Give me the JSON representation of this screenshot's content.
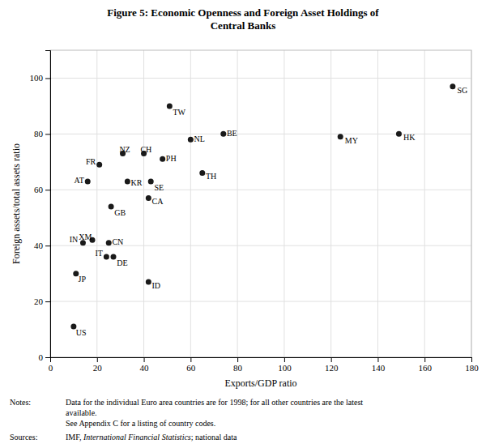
{
  "chart_data": {
    "type": "scatter",
    "title": "Figure 5: Economic Openness and Foreign Asset Holdings of\nCentral Banks",
    "x_label": "Exports/GDP ratio",
    "y_label": "Foreign assets/total assets ratio",
    "labels": [
      "US",
      "JP",
      "IN",
      "XM",
      "FR",
      "AT",
      "GB",
      "IT",
      "DE",
      "CN",
      "NZ",
      "KR",
      "CH",
      "SE",
      "CA",
      "ID",
      "PH",
      "TW",
      "NL",
      "TH",
      "BE",
      "MY",
      "HK",
      "SG"
    ],
    "x": [
      10,
      11,
      14,
      18,
      21,
      16,
      26,
      24,
      27,
      25,
      31,
      33,
      40,
      43,
      42,
      42,
      48,
      51,
      60,
      65,
      74,
      124,
      149,
      172
    ],
    "values": [
      11,
      30,
      41,
      42,
      69,
      63,
      54,
      36,
      36,
      41,
      73,
      63,
      73,
      63,
      57,
      27,
      71,
      90,
      78,
      66,
      80,
      79,
      80,
      97
    ],
    "color": "#1a1a1a",
    "xlim": [
      0,
      180
    ],
    "ylim": [
      0,
      110
    ],
    "xticks": [
      0,
      20,
      40,
      60,
      80,
      100,
      120,
      140,
      160,
      180
    ],
    "yticks": [
      0,
      20,
      40,
      60,
      80,
      100
    ],
    "grid": true,
    "notes_label": "Notes:",
    "notes": [
      "Data for the individual Euro area countries are for 1998; for all other countries are the latest",
      "available.",
      "See Appendix C for a listing of country codes."
    ],
    "sources_label": "Sources:",
    "sources": [
      "IMF, ",
      "International Financial Statistics",
      "; national data"
    ]
  }
}
